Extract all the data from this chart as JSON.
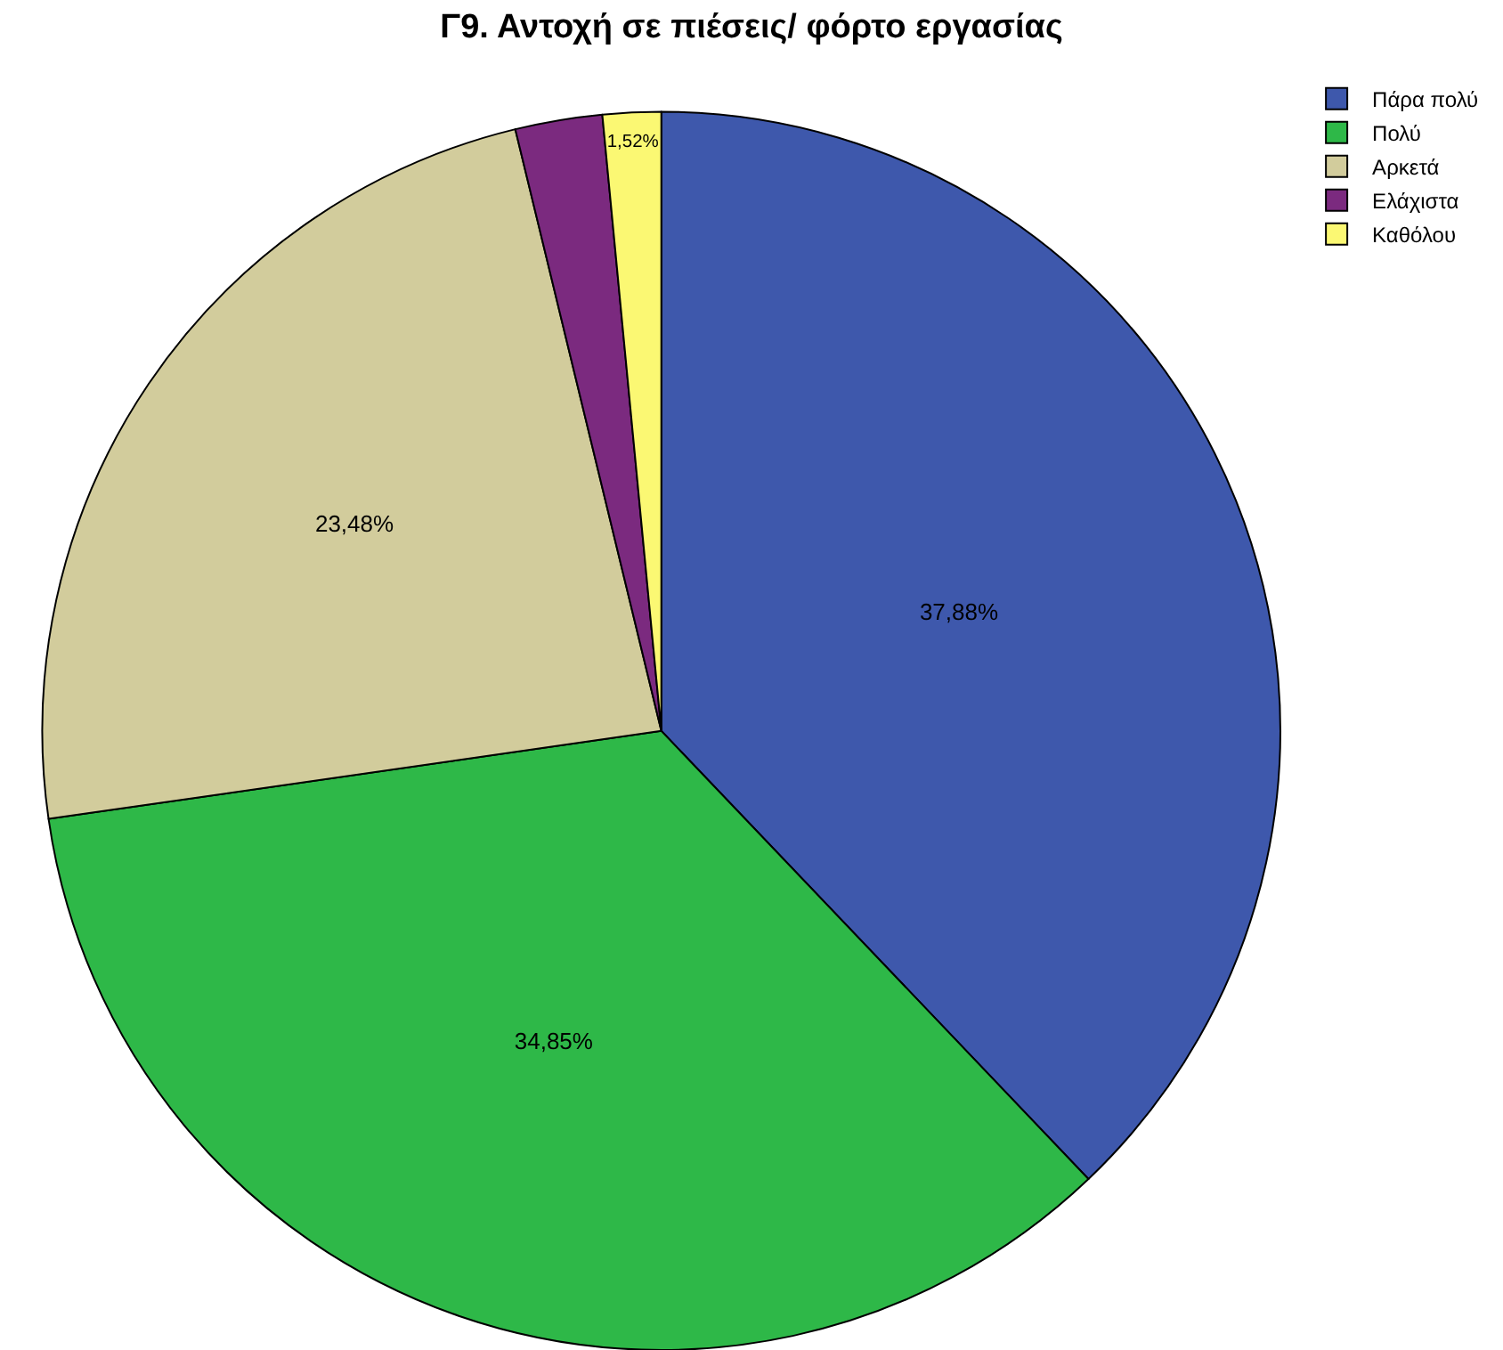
{
  "chart_data": {
    "type": "pie",
    "title": "Γ9. Αντοχή σε πιέσεις/ φόρτο εργασίας",
    "categories": [
      "Πάρα πολύ",
      "Πολύ",
      "Αρκετά",
      "Ελάχιστα",
      "Καθόλου"
    ],
    "values": [
      37.88,
      34.85,
      23.48,
      2.27,
      1.52
    ],
    "value_labels": [
      "37,88%",
      "34,85%",
      "23,48%",
      null,
      "1,52%"
    ],
    "colors": [
      "#3e58ac",
      "#2eb848",
      "#d2cc9c",
      "#7b2a7f",
      "#fbf873"
    ],
    "legend": "top right"
  }
}
